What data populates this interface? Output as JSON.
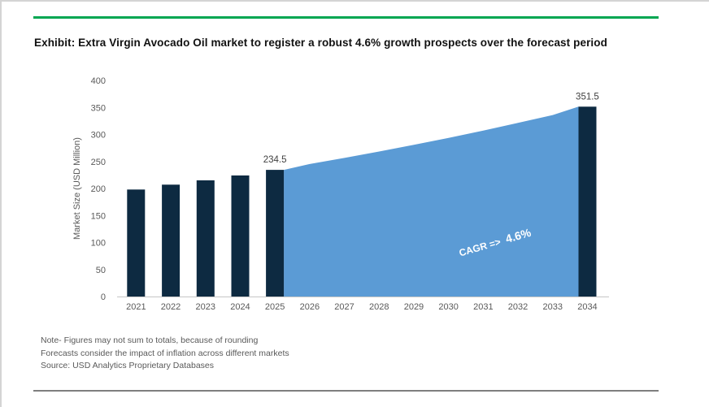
{
  "header": {
    "title": "Exhibit: Extra Virgin Avocado Oil market to register a robust 4.6% growth prospects over the forecast period"
  },
  "chart_data": {
    "type": "bar",
    "title": "",
    "xlabel": "",
    "ylabel": "Market Size (USD Million)",
    "ylim": [
      0,
      400
    ],
    "yticks": [
      0,
      50,
      100,
      150,
      200,
      250,
      300,
      350,
      400
    ],
    "grid": false,
    "legend": false,
    "categories": [
      "2021",
      "2022",
      "2023",
      "2024",
      "2025",
      "2026",
      "2027",
      "2028",
      "2029",
      "2030",
      "2031",
      "2032",
      "2033",
      "2034"
    ],
    "bars": {
      "2021": 198,
      "2022": 207,
      "2023": 215,
      "2024": 224,
      "2025": 234.5,
      "2034": 351.5
    },
    "bar_labels": {
      "2025": "234.5",
      "2034": "351.5"
    },
    "forecast_area": {
      "start_year": "2025",
      "end_year": "2034",
      "cagr_percent": 4.6,
      "values": {
        "2025": 234.5,
        "2026": 245.3,
        "2027": 256.6,
        "2028": 268.4,
        "2029": 280.7,
        "2030": 293.6,
        "2031": 307.1,
        "2032": 321.3,
        "2033": 336.0,
        "2034": 351.5
      }
    },
    "annotation": {
      "prefix": "CAGR =>",
      "value": "4.6%"
    },
    "colors": {
      "bar": "#0d2a41",
      "area": "#5b9bd5",
      "accent_green": "#00a651",
      "axis_line": "#c6c6c6",
      "tick_text": "#595959",
      "data_label": "#404040",
      "annotation_text": "#ffffff"
    }
  },
  "footer": {
    "notes": [
      "Note- Figures may not sum to totals, because of rounding",
      "Forecasts consider the impact of inflation across different markets",
      "Source: USD Analytics Proprietary Databases"
    ]
  }
}
